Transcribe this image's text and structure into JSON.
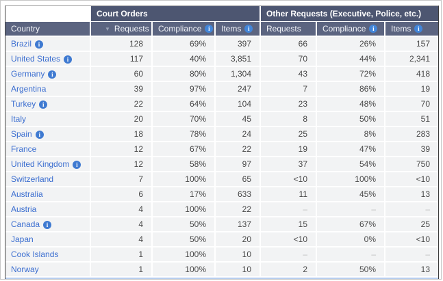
{
  "table": {
    "groups": {
      "court_orders": "Court Orders",
      "other_requests": "Other Requests (Executive, Police, etc.)"
    },
    "columns": {
      "country": "Country",
      "requests": "Requests",
      "compliance": "Compliance",
      "items": "Items"
    },
    "sort": {
      "column": "court_orders_requests",
      "direction": "desc"
    },
    "missing_marker": "–",
    "rows": [
      {
        "country": "Brazil",
        "info": true,
        "values": [
          "128",
          "69%",
          "397",
          "66",
          "26%",
          "157"
        ]
      },
      {
        "country": "United States",
        "info": true,
        "values": [
          "117",
          "40%",
          "3,851",
          "70",
          "44%",
          "2,341"
        ]
      },
      {
        "country": "Germany",
        "info": true,
        "values": [
          "60",
          "80%",
          "1,304",
          "43",
          "72%",
          "418"
        ]
      },
      {
        "country": "Argentina",
        "info": false,
        "values": [
          "39",
          "97%",
          "247",
          "7",
          "86%",
          "19"
        ]
      },
      {
        "country": "Turkey",
        "info": true,
        "values": [
          "22",
          "64%",
          "104",
          "23",
          "48%",
          "70"
        ]
      },
      {
        "country": "Italy",
        "info": false,
        "values": [
          "20",
          "70%",
          "45",
          "8",
          "50%",
          "51"
        ]
      },
      {
        "country": "Spain",
        "info": true,
        "values": [
          "18",
          "78%",
          "24",
          "25",
          "8%",
          "283"
        ]
      },
      {
        "country": "France",
        "info": false,
        "values": [
          "12",
          "67%",
          "22",
          "19",
          "47%",
          "39"
        ]
      },
      {
        "country": "United Kingdom",
        "info": true,
        "values": [
          "12",
          "58%",
          "97",
          "37",
          "54%",
          "750"
        ]
      },
      {
        "country": "Switzerland",
        "info": false,
        "values": [
          "7",
          "100%",
          "65",
          "<10",
          "100%",
          "<10"
        ]
      },
      {
        "country": "Australia",
        "info": false,
        "values": [
          "6",
          "17%",
          "633",
          "11",
          "45%",
          "13"
        ]
      },
      {
        "country": "Austria",
        "info": false,
        "values": [
          "4",
          "100%",
          "22",
          "–",
          "–",
          "–"
        ]
      },
      {
        "country": "Canada",
        "info": true,
        "values": [
          "4",
          "50%",
          "137",
          "15",
          "67%",
          "25"
        ]
      },
      {
        "country": "Japan",
        "info": false,
        "values": [
          "4",
          "50%",
          "20",
          "<10",
          "0%",
          "<10"
        ]
      },
      {
        "country": "Cook Islands",
        "info": false,
        "values": [
          "1",
          "100%",
          "10",
          "–",
          "–",
          "–"
        ]
      },
      {
        "country": "Norway",
        "info": false,
        "values": [
          "1",
          "100%",
          "10",
          "2",
          "50%",
          "13"
        ]
      }
    ]
  },
  "icons": {
    "info_glyph": "i",
    "sort_desc_glyph": "▼"
  },
  "colors": {
    "group_header_bg": "#4d5671",
    "column_header_bg": "#5b6480",
    "header_text": "#f2f4f8",
    "link_blue": "#3b6ed0",
    "info_icon_blue": "#4285d8",
    "row_bg": "#f2f3f4",
    "value_text": "#484848",
    "missing_text": "#bcbcbc",
    "bottom_highlight_strip": "#b7cdee"
  }
}
